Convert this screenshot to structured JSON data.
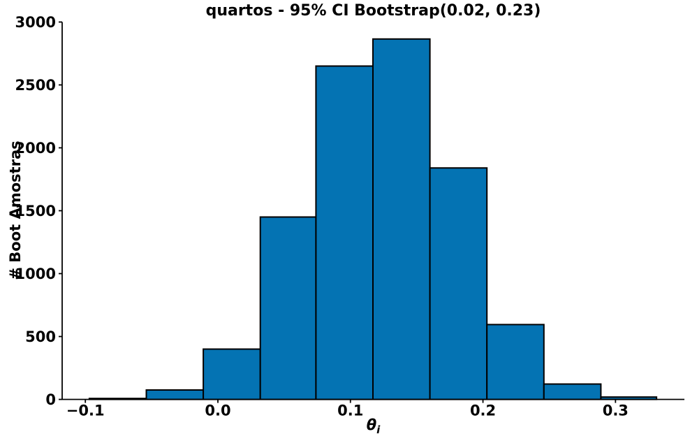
{
  "figure": {
    "title": "quartos - 95% CI Bootstrap(0.02, 0.23)",
    "xlabel_symbol": "θ",
    "xlabel_subscript": "i",
    "ylabel": "# Boot Amostras"
  },
  "chart_data": {
    "type": "bar",
    "subtype": "histogram",
    "title": "quartos - 95% CI Bootstrap(0.02, 0.23)",
    "xlabel": "theta_i",
    "ylabel": "# Boot Amostras",
    "ci_low": 0.02,
    "ci_high": 0.23,
    "bin_edges": [
      -0.097,
      -0.054,
      -0.011,
      0.032,
      0.074,
      0.117,
      0.16,
      0.203,
      0.246,
      0.289,
      0.331
    ],
    "counts": [
      8,
      75,
      400,
      1450,
      2650,
      2865,
      1840,
      595,
      122,
      19
    ],
    "xticks": [
      -0.1,
      0.0,
      0.1,
      0.2,
      0.3
    ],
    "xtick_labels": [
      "−0.1",
      "0.0",
      "0.1",
      "0.2",
      "0.3"
    ],
    "yticks": [
      0,
      500,
      1000,
      1500,
      2000,
      2500,
      3000
    ],
    "ytick_labels": [
      "0",
      "500",
      "1000",
      "1500",
      "2000",
      "2500",
      "3000"
    ],
    "xlim": [
      -0.1175,
      0.352
    ],
    "ylim": [
      0,
      3000
    ],
    "bar_color": "#0473b3",
    "bar_edge_color": "#000000",
    "axis_color": "#000000",
    "background_color": "#ffffff",
    "grid": false,
    "legend_position": "none"
  }
}
